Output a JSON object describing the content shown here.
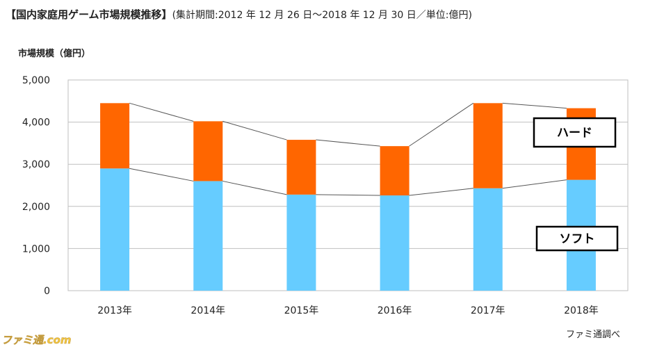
{
  "title": {
    "main": "【国内家庭用ゲーム市場規模推移】",
    "sub": "(集計期間:2012 年 12 月 26 日〜2018 年 12 月 30 日／単位:億円)"
  },
  "source": "ファミ通調べ",
  "watermark": "ファミ通.com",
  "colors": {
    "soft": "#66ccff",
    "hard": "#ff6600",
    "line": "#555555",
    "grid": "#bfbfbf"
  },
  "chart_data": {
    "type": "bar",
    "stacked": true,
    "categories": [
      "2013年",
      "2014年",
      "2015年",
      "2016年",
      "2017年",
      "2018年"
    ],
    "series": [
      {
        "name": "ソフト",
        "values": [
          2900,
          2600,
          2280,
          2260,
          2430,
          2630
        ]
      },
      {
        "name": "ハード",
        "values": [
          1550,
          1420,
          1300,
          1170,
          2020,
          1700
        ]
      }
    ],
    "ylabel": "市場規模（億円）",
    "yticks": [
      "0",
      "1,000",
      "2,000",
      "3,000",
      "4,000",
      "5,000"
    ],
    "ylim": [
      0,
      5000
    ],
    "grid": true,
    "legend": "inline-right"
  }
}
